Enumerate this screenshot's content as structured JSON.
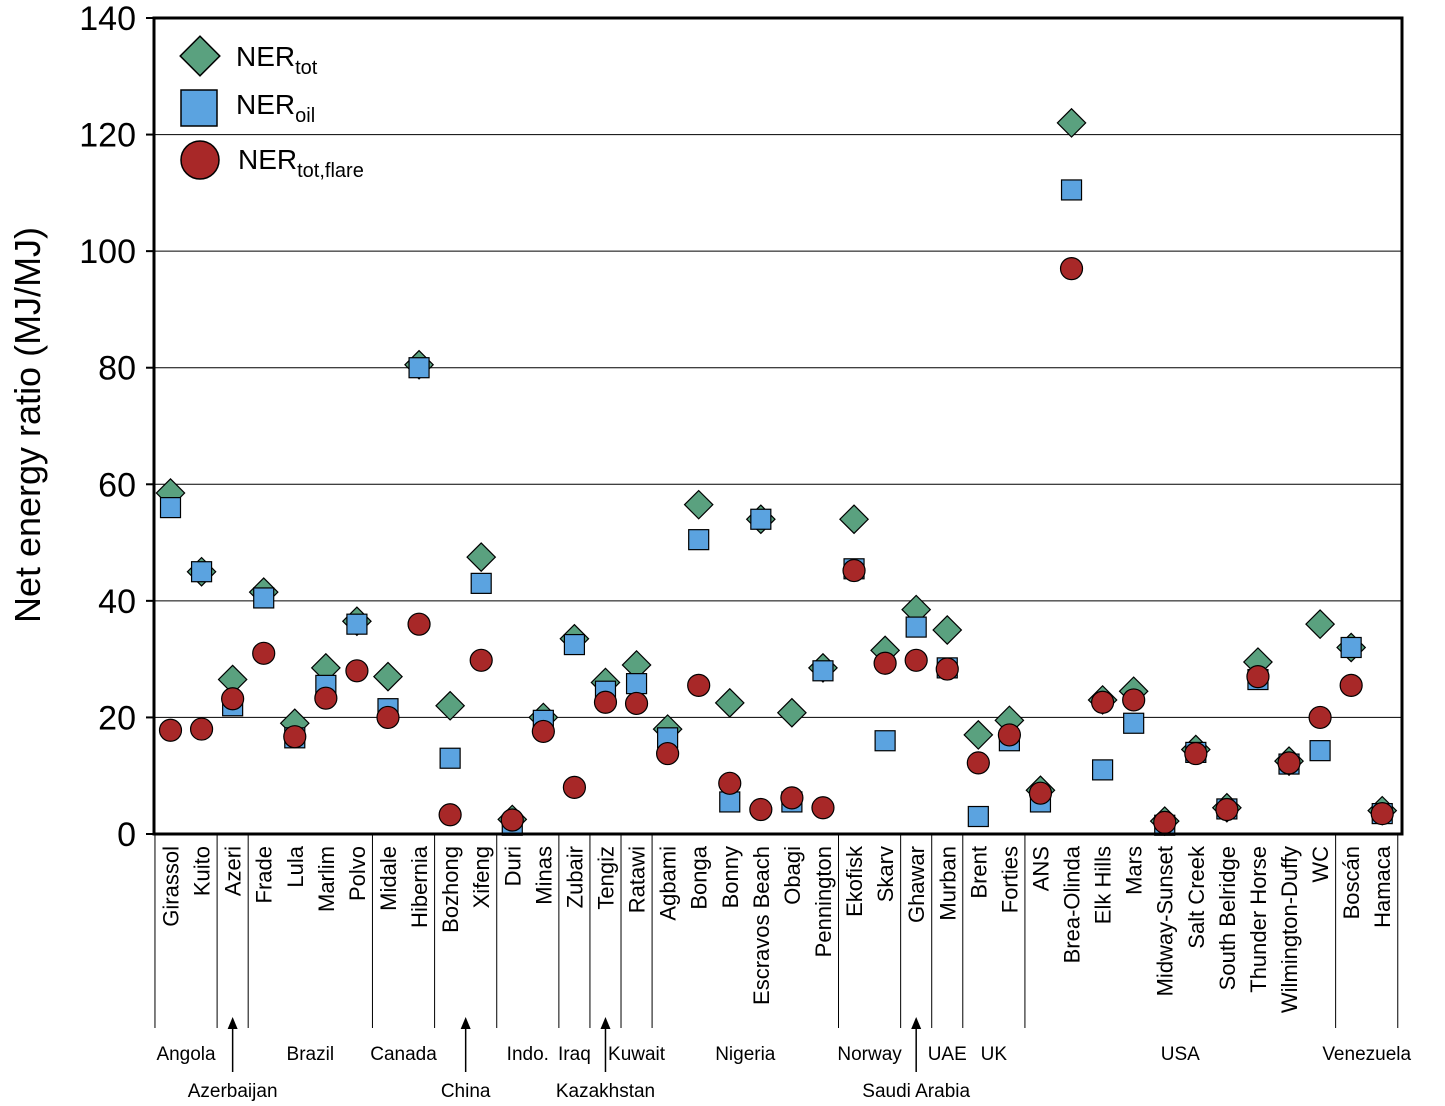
{
  "chart_data": {
    "type": "scatter",
    "ylabel": "Net energy ratio (MJ/MJ)",
    "ylim": [
      0,
      140
    ],
    "yticks": [
      "0",
      "20",
      "40",
      "60",
      "80",
      "100",
      "120",
      "140"
    ],
    "grid": "horizontal",
    "legend_position": "top-left",
    "categories": [
      "Girassol",
      "Kuito",
      "Azeri",
      "Frade",
      "Lula",
      "Marlim",
      "Polvo",
      "Midale",
      "Hibernia",
      "Bozhong",
      "Xifeng",
      "Duri",
      "Minas",
      "Zubair",
      "Tengiz",
      "Ratawi",
      "Agbami",
      "Bonga",
      "Bonny",
      "Escravos Beach",
      "Obagi",
      "Pennington",
      "Ekofisk",
      "Skarv",
      "Ghawar",
      "Murban",
      "Brent",
      "Forties",
      "ANS",
      "Brea-Olinda",
      "Elk Hills",
      "Mars",
      "Midway-Sunset",
      "Salt Creek",
      "South Belridge",
      "Thunder Horse",
      "Wilmington-Duffy",
      "WC",
      "Boscán",
      "Hamaca"
    ],
    "series": [
      {
        "name": "NER",
        "sub": "tot",
        "marker": "diamond",
        "color": "#5aa17f",
        "values": [
          58.5,
          45,
          26.5,
          41.5,
          19,
          28.5,
          36.5,
          27,
          80.5,
          22,
          47.5,
          2.5,
          20,
          33.5,
          26,
          29,
          18,
          56.5,
          22.5,
          54,
          20.8,
          28.5,
          54,
          31.5,
          38.5,
          35,
          17,
          19.5,
          7.5,
          122,
          23,
          24.5,
          2.2,
          14.5,
          4.5,
          29.5,
          12.5,
          36,
          32,
          4
        ]
      },
      {
        "name": "NER",
        "sub": "oil",
        "marker": "square",
        "color": "#5ba3e0",
        "values": [
          56,
          45,
          22,
          40.5,
          16.5,
          25.5,
          36,
          21.5,
          80,
          13,
          43,
          1.5,
          19.5,
          32.5,
          24.5,
          25.8,
          16.5,
          50.5,
          5.5,
          54,
          5.5,
          28,
          45.5,
          16,
          35.5,
          28.5,
          3,
          16,
          5.5,
          110.5,
          11,
          19,
          1.5,
          14,
          4.3,
          26.5,
          12,
          14.3,
          32,
          3.5
        ]
      },
      {
        "name": "NER",
        "sub": "tot,flare",
        "marker": "circle",
        "color": "#a82828",
        "values": [
          17.8,
          18,
          23.2,
          31,
          16.7,
          23.3,
          28,
          20,
          36,
          3.3,
          29.8,
          2.4,
          17.6,
          8,
          22.6,
          22.4,
          13.8,
          25.5,
          8.7,
          4.2,
          6.2,
          4.5,
          45.2,
          29.3,
          29.8,
          28.3,
          12.2,
          17,
          7,
          97,
          22.6,
          23,
          2,
          13.8,
          4.2,
          27,
          12.2,
          20,
          25.5,
          3.5
        ]
      }
    ],
    "groups": [
      {
        "name": "Angola",
        "start": 0,
        "end": 1,
        "row": 1
      },
      {
        "name": "Azerbaijan",
        "start": 2,
        "end": 2,
        "row": 2,
        "arrow": true
      },
      {
        "name": "Brazil",
        "start": 3,
        "end": 6,
        "row": 1
      },
      {
        "name": "Canada",
        "start": 7,
        "end": 8,
        "row": 1
      },
      {
        "name": "China",
        "start": 9,
        "end": 10,
        "row": 2,
        "arrow": true
      },
      {
        "name": "Indo.",
        "start": 11,
        "end": 12,
        "row": 1
      },
      {
        "name": "Iraq",
        "start": 13,
        "end": 13,
        "row": 1
      },
      {
        "name": "Kazakhstan",
        "start": 14,
        "end": 14,
        "row": 2,
        "arrow": true
      },
      {
        "name": "Kuwait",
        "start": 15,
        "end": 15,
        "row": 1
      },
      {
        "name": "Nigeria",
        "start": 16,
        "end": 21,
        "row": 1
      },
      {
        "name": "Norway",
        "start": 22,
        "end": 23,
        "row": 1
      },
      {
        "name": "Saudi Arabia",
        "start": 24,
        "end": 24,
        "row": 2,
        "arrow": true
      },
      {
        "name": "UAE",
        "start": 25,
        "end": 25,
        "row": 1
      },
      {
        "name": "UK",
        "start": 26,
        "end": 27,
        "row": 1
      },
      {
        "name": "USA",
        "start": 28,
        "end": 37,
        "row": 1
      },
      {
        "name": "Venezuela",
        "start": 38,
        "end": 39,
        "row": 1
      }
    ]
  }
}
